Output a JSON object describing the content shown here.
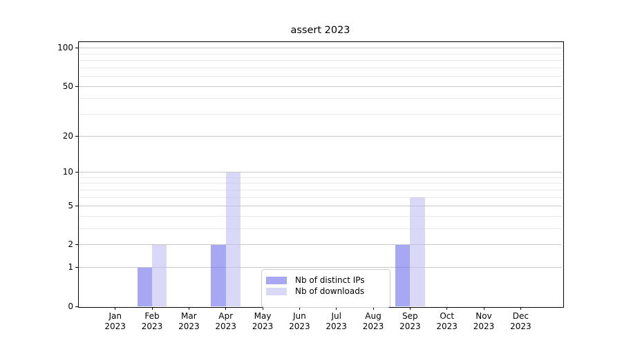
{
  "chart_data": {
    "type": "bar",
    "title": "assert 2023",
    "categories": [
      "Jan",
      "Feb",
      "Mar",
      "Apr",
      "May",
      "Jun",
      "Jul",
      "Aug",
      "Sep",
      "Oct",
      "Nov",
      "Dec"
    ],
    "x_tick_second_line": "2023",
    "series": [
      {
        "name": "Nb of distinct IPs",
        "color": "#a6a6f0",
        "fill": "rgba(100,100,235,0.57)",
        "values": [
          0,
          1,
          0,
          2,
          0,
          0,
          0,
          0,
          2,
          0,
          0,
          0
        ]
      },
      {
        "name": "Nb of downloads",
        "color": "#d9d9f8",
        "fill": "rgba(190,190,242,0.59)",
        "values": [
          0,
          2,
          0,
          10,
          0,
          0,
          0,
          0,
          6,
          0,
          0,
          0
        ]
      }
    ],
    "xlabel": "",
    "ylabel": "",
    "y_axis": {
      "scale": "log1p",
      "ticks": [
        0,
        1,
        2,
        5,
        10,
        20,
        50,
        100
      ],
      "minor_ticks": [
        3,
        4,
        6,
        7,
        8,
        9,
        30,
        40,
        60,
        70,
        80,
        90
      ],
      "ylim": [
        0,
        113
      ]
    },
    "grid": "on",
    "legend_position": "lower center",
    "colors": {
      "major_grid": "#c6c6c6",
      "minor_grid": "#e9e9e9",
      "spine": "#000000",
      "background": "#ffffff"
    }
  }
}
